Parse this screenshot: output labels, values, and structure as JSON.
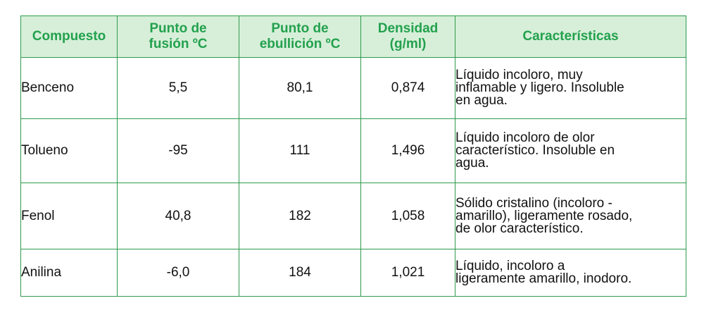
{
  "table": {
    "headers": [
      "Compuesto",
      "Punto de\nfusión ºC",
      "Punto de\nebullición ºC",
      "Densidad\n(g/ml)",
      "Características"
    ],
    "rows": [
      {
        "compuesto": "Benceno",
        "fusion": "5,5",
        "ebullicion": "80,1",
        "densidad": "0,874",
        "caracteristicas": "Líquido incoloro, muy\ninflamable y ligero. Insoluble\nen agua."
      },
      {
        "compuesto": "Tolueno",
        "fusion": "-95",
        "ebullicion": "111",
        "densidad": "1,496",
        "caracteristicas": "Líquido incoloro de olor\ncaracterístico. Insoluble en\nagua."
      },
      {
        "compuesto": "Fenol",
        "fusion": "40,8",
        "ebullicion": "182",
        "densidad": "1,058",
        "caracteristicas": "Sólido cristalino (incoloro -\namarillo), ligeramente rosado,\nde olor característico."
      },
      {
        "compuesto": "Anilina",
        "fusion": "-6,0",
        "ebullicion": "184",
        "densidad": "1,021",
        "caracteristicas": "Líquido, incoloro a\nligeramente amarillo, inodoro."
      }
    ]
  },
  "colors": {
    "header_background": "#d7efd9",
    "header_text": "#23a14e",
    "border": "#2e9a4c",
    "body_text": "#111111"
  }
}
